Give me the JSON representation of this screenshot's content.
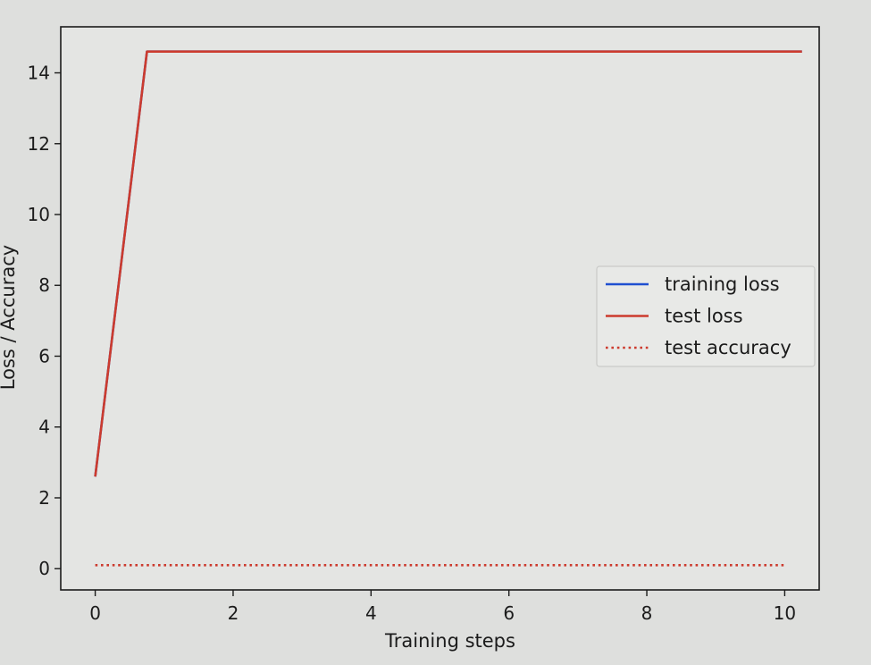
{
  "chart_data": {
    "type": "line",
    "xlabel": "Training steps",
    "ylabel": "Loss / Accuracy",
    "xlim": [
      -0.5,
      10.5
    ],
    "ylim": [
      -0.6,
      15.3
    ],
    "x_ticks": [
      0,
      2,
      4,
      6,
      8,
      10
    ],
    "y_ticks": [
      0,
      2,
      4,
      6,
      8,
      10,
      12,
      14
    ],
    "grid": false,
    "legend_position": "center-right",
    "series": [
      {
        "name": "training loss",
        "color": "#1f4fd0",
        "style": "solid",
        "x": [
          0,
          0.75,
          10.25
        ],
        "y": [
          2.6,
          14.6,
          14.6
        ]
      },
      {
        "name": "test loss",
        "color": "#cc3b2e",
        "style": "solid",
        "x": [
          0,
          0.75,
          10.25
        ],
        "y": [
          2.6,
          14.6,
          14.6
        ]
      },
      {
        "name": "test accuracy",
        "color": "#cc3b2e",
        "style": "dotted",
        "x": [
          0,
          10
        ],
        "y": [
          0.1,
          0.1
        ]
      }
    ]
  }
}
